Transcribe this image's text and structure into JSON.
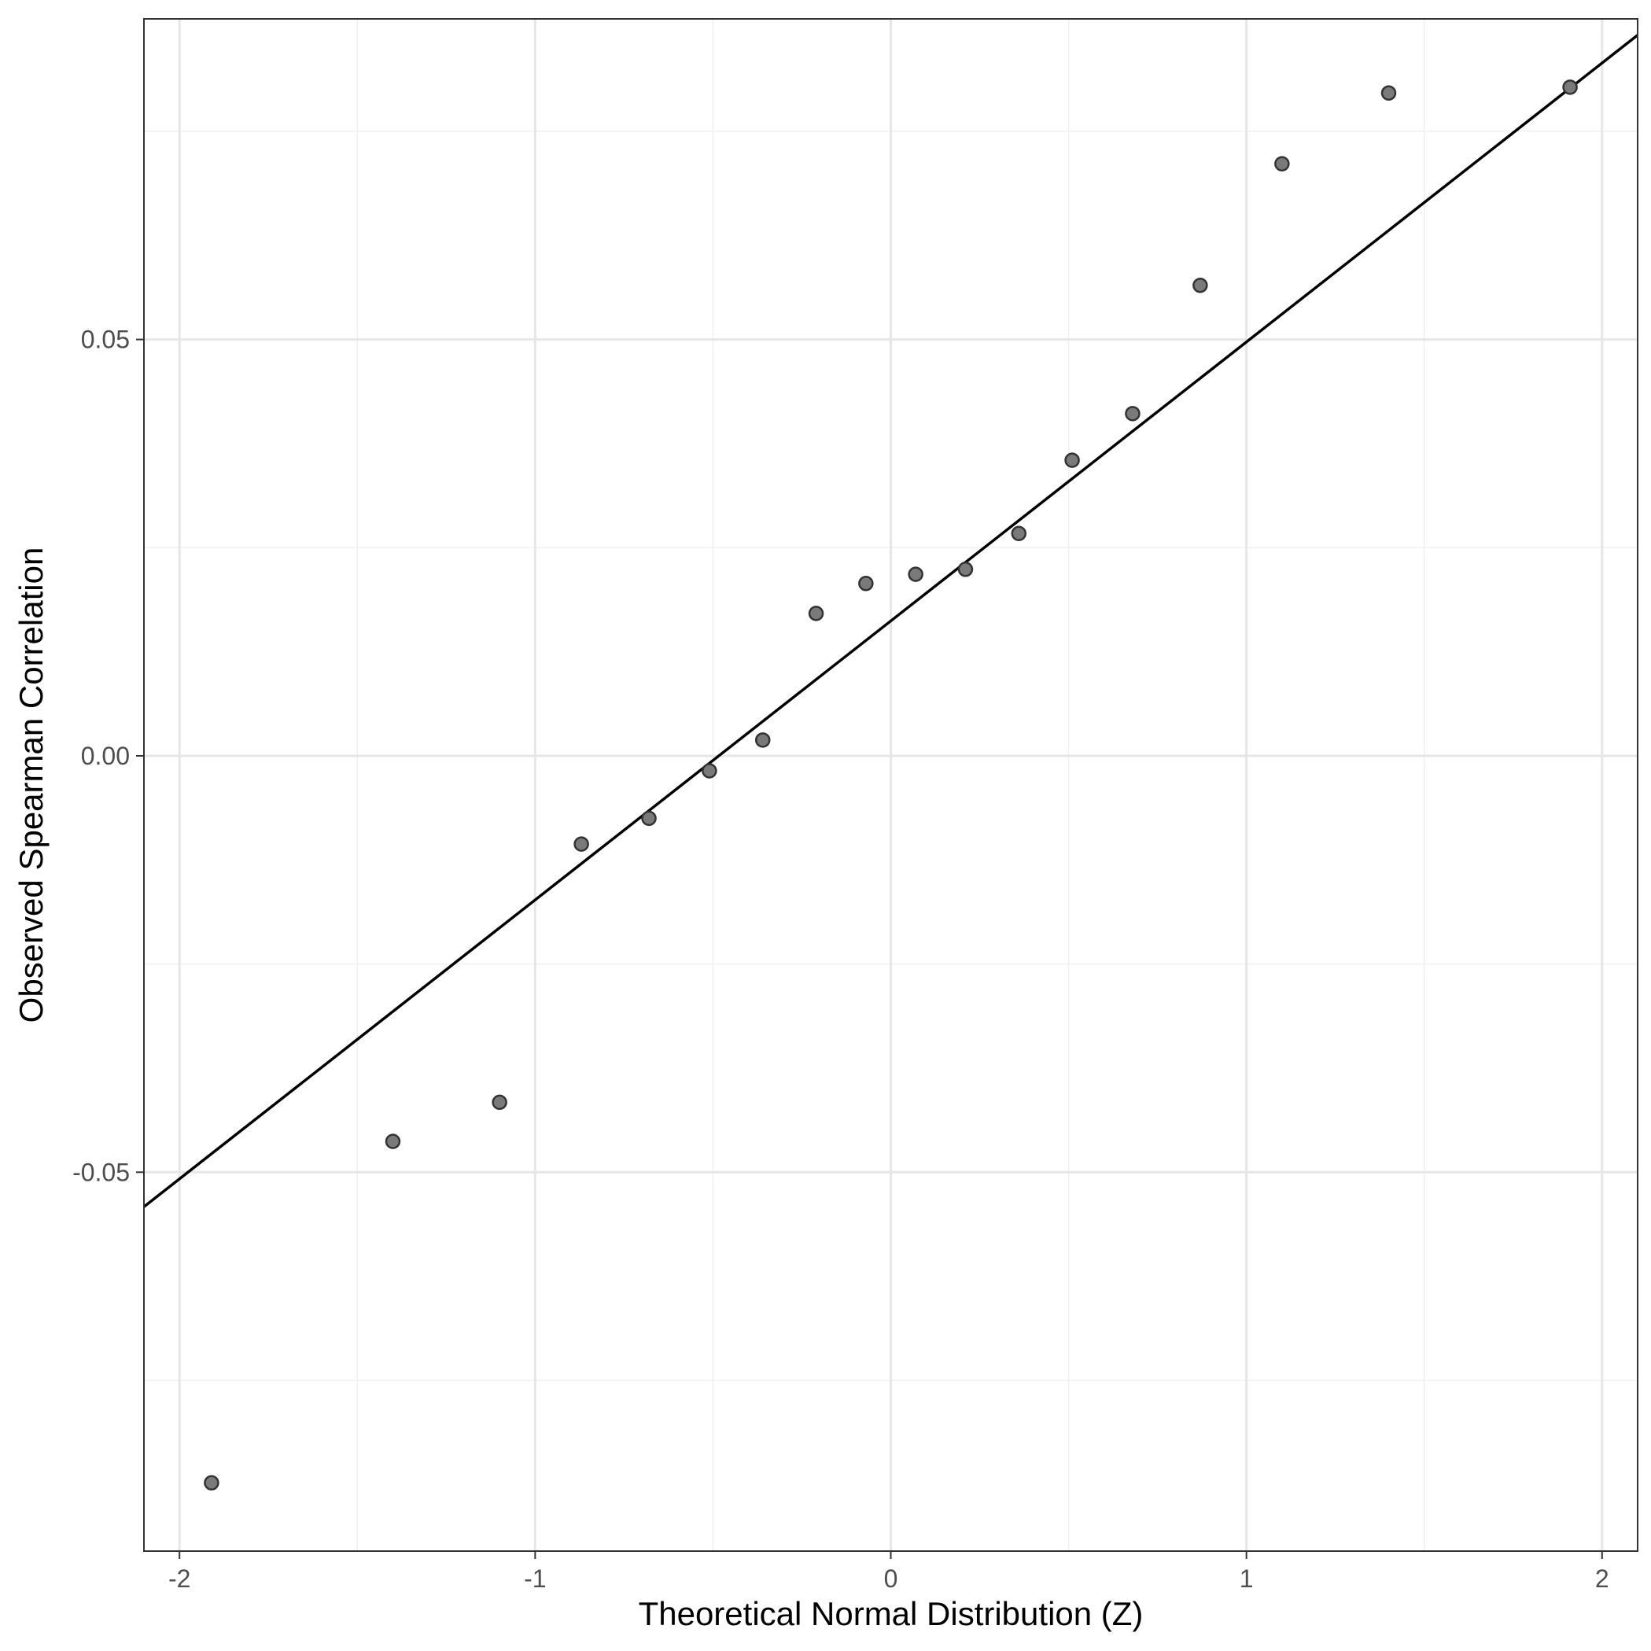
{
  "chart_data": {
    "type": "scatter",
    "title": "",
    "xlabel": "Theoretical Normal Distribution (Z)",
    "ylabel": "Observed Spearman Correlation",
    "xlim": [
      -2.1,
      2.1
    ],
    "ylim": [
      -0.0955,
      0.0885
    ],
    "x_ticks": [
      -2,
      -1,
      0,
      1,
      2
    ],
    "x_tick_labels": [
      "-2",
      "-1",
      "0",
      "1",
      "2"
    ],
    "y_ticks": [
      -0.05,
      0.0,
      0.05
    ],
    "y_tick_labels": [
      "-0.05",
      "0.00",
      "0.05"
    ],
    "grid": true,
    "legend": "none",
    "colors": {
      "point_fill": "#7a7a7a",
      "point_stroke": "#333333",
      "line": "#000000",
      "grid_major": "#e6e6e6",
      "grid_minor": "#f0f0f0",
      "border": "#333333"
    },
    "points": {
      "x": [
        -1.91,
        -1.4,
        -1.1,
        -0.87,
        -0.68,
        -0.51,
        -0.36,
        -0.21,
        -0.07,
        0.07,
        0.21,
        0.36,
        0.51,
        0.68,
        0.87,
        1.1,
        1.4,
        1.91
      ],
      "y": [
        -0.0873,
        -0.0463,
        -0.0416,
        -0.0106,
        -0.0075,
        -0.0018,
        0.0019,
        0.0171,
        0.0207,
        0.0218,
        0.0224,
        0.0267,
        0.0355,
        0.0411,
        0.0565,
        0.0711,
        0.0796,
        0.0803
      ]
    },
    "reference_line": {
      "type": "qq-line",
      "intercept": 0.0162,
      "slope": 0.0335
    }
  }
}
